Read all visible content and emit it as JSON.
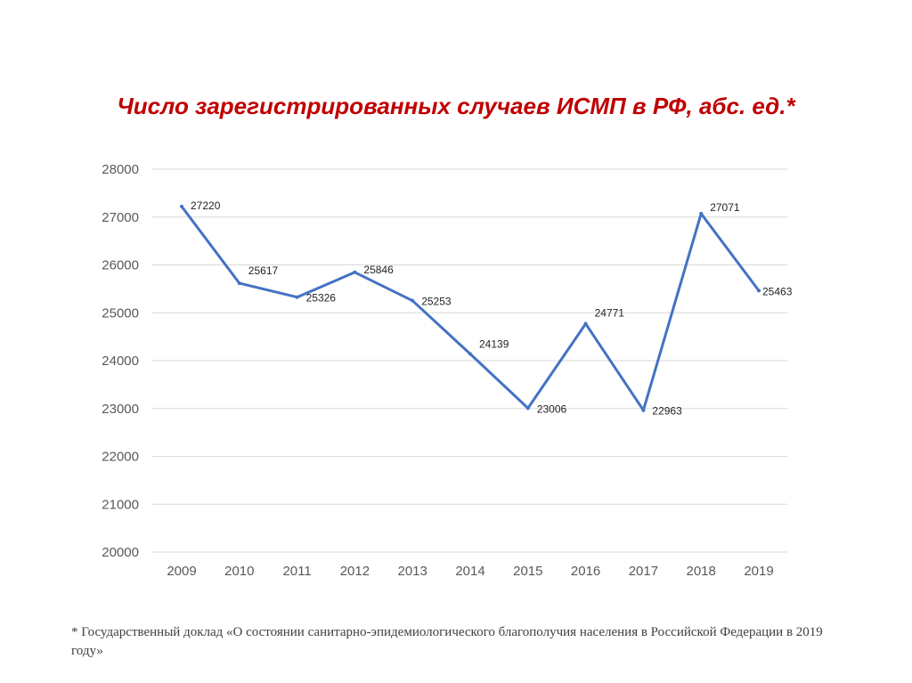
{
  "slide": {
    "title": "Число зарегистрированных случаев ИСМП в РФ, абс. ед.*",
    "footnote": "* Государственный доклад «О состоянии санитарно-эпидемиологического благополучия населения в Российской Федерации в 2019 году»"
  },
  "chart_data": {
    "type": "line",
    "title": "Число зарегистрированных случаев ИСМП в РФ, абс. ед.*",
    "xlabel": "",
    "ylabel": "",
    "categories": [
      "2009",
      "2010",
      "2011",
      "2012",
      "2013",
      "2014",
      "2015",
      "2016",
      "2017",
      "2018",
      "2019"
    ],
    "series": [
      {
        "values": [
          27220,
          25617,
          25326,
          25846,
          25253,
          24139,
          23006,
          24771,
          22963,
          27071,
          25463
        ]
      }
    ],
    "ylim": [
      20000,
      28000
    ],
    "yticks": [
      20000,
      21000,
      22000,
      23000,
      24000,
      25000,
      26000,
      27000,
      28000
    ],
    "grid": true,
    "legend": "none",
    "data_labels": true,
    "line_color": "#4472c4",
    "grid_color": "#d9d9d9"
  }
}
